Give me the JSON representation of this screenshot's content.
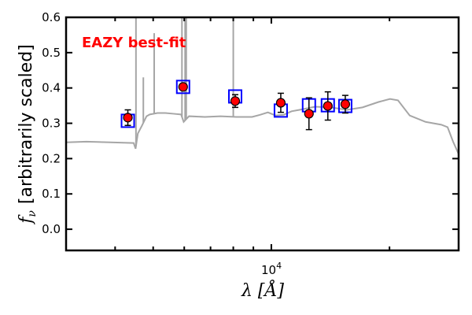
{
  "chart_data": {
    "type": "scatter",
    "title": "",
    "annotation": "EAZY best-fit",
    "xlabel": "λ [Å]",
    "ylabel_symbol": "f",
    "ylabel_sub": "ν",
    "ylabel_text": "[arbitrarily scaled]",
    "xscale": "log",
    "xlim": [
      3000,
      30000
    ],
    "ylim": [
      -0.06,
      0.6
    ],
    "x_major_ticks": [
      {
        "value": 10000,
        "base": "10",
        "exp": "4"
      }
    ],
    "x_minor_ticks": [
      4000,
      5000,
      6000,
      7000,
      8000,
      9000,
      20000
    ],
    "y_ticks": [
      0.0,
      0.1,
      0.2,
      0.3,
      0.4,
      0.5,
      0.6
    ],
    "y_tick_labels": [
      "0.0",
      "0.1",
      "0.2",
      "0.3",
      "0.4",
      "0.5",
      "0.6"
    ],
    "colors": {
      "spectrum": "#a6a6a6",
      "photometry": "#ff0000",
      "model": "#0000ff",
      "annotation": "#ff0000"
    },
    "series": [
      {
        "name": "best-fit template spectrum",
        "kind": "line",
        "x": [
          3000,
          3380,
          3890,
          4460,
          4510,
          4570,
          4680,
          4810,
          4900,
          5130,
          5370,
          5630,
          5890,
          5980,
          6170,
          6770,
          7420,
          8150,
          8930,
          9360,
          9800,
          10260,
          10750,
          11260,
          11790,
          12930,
          14190,
          15560,
          17070,
          18720,
          20060,
          21020,
          22520,
          24710,
          27100,
          28120,
          29040,
          30000
        ],
        "y": [
          0.246,
          0.248,
          0.246,
          0.244,
          0.228,
          0.271,
          0.293,
          0.32,
          0.325,
          0.329,
          0.329,
          0.327,
          0.325,
          0.304,
          0.32,
          0.318,
          0.32,
          0.318,
          0.318,
          0.324,
          0.331,
          0.322,
          0.324,
          0.334,
          0.338,
          0.347,
          0.345,
          0.338,
          0.345,
          0.36,
          0.369,
          0.365,
          0.322,
          0.304,
          0.296,
          0.289,
          0.248,
          0.213
        ]
      },
      {
        "name": "emission lines",
        "kind": "spikes",
        "x": [
          4520,
          4720,
          5030,
          5920,
          6030,
          6070,
          8000
        ],
        "peak": [
          0.9,
          0.43,
          0.555,
          0.9,
          0.9,
          0.9,
          0.9
        ]
      },
      {
        "name": "observed photometry",
        "kind": "errorbar",
        "x": [
          4310,
          5960,
          8090,
          10570,
          12470,
          13930,
          15430
        ],
        "y": [
          0.316,
          0.403,
          0.363,
          0.358,
          0.327,
          0.349,
          0.354
        ],
        "yerr": [
          0.022,
          0.0,
          0.018,
          0.027,
          0.045,
          0.04,
          0.025
        ]
      },
      {
        "name": "model photometry",
        "kind": "square",
        "x": [
          4310,
          5960,
          8090,
          10570,
          12470,
          13930,
          15430
        ],
        "y": [
          0.307,
          0.403,
          0.376,
          0.336,
          0.351,
          0.351,
          0.349
        ]
      }
    ]
  }
}
